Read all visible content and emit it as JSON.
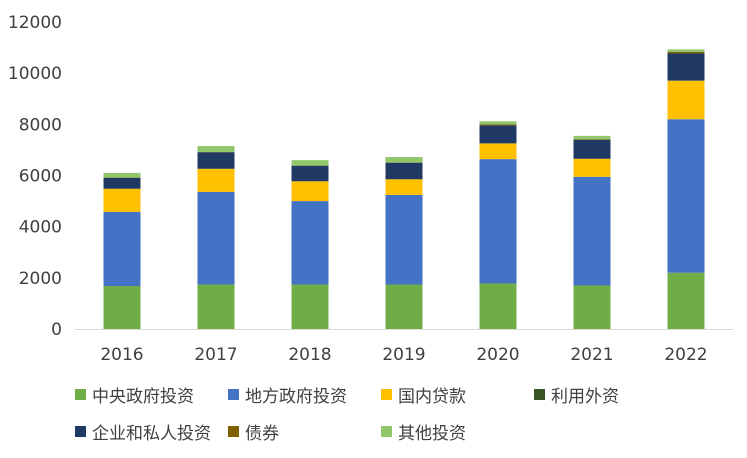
{
  "chart_data": {
    "type": "bar",
    "stacked": true,
    "categories": [
      "2016",
      "2017",
      "2018",
      "2019",
      "2020",
      "2021",
      "2022"
    ],
    "ylim": [
      0,
      12000
    ],
    "yticks": [
      "0",
      "2000",
      "4000",
      "6000",
      "8000",
      "10000",
      "12000"
    ],
    "grid": false,
    "legend_position": "bottom",
    "series": [
      {
        "name": "中央政府投资",
        "color": "#70ad47",
        "values": [
          1680,
          1740,
          1740,
          1740,
          1780,
          1700,
          2200
        ]
      },
      {
        "name": "地方政府投资",
        "color": "#4472c4",
        "values": [
          2900,
          3620,
          3260,
          3500,
          4860,
          4250,
          6000
        ]
      },
      {
        "name": "国内贷款",
        "color": "#ffc000",
        "values": [
          900,
          900,
          770,
          610,
          610,
          700,
          1500
        ]
      },
      {
        "name": "利用外资",
        "color": "#375623",
        "values": [
          10,
          10,
          10,
          10,
          10,
          10,
          20
        ]
      },
      {
        "name": "企业和私人投资",
        "color": "#203864",
        "values": [
          420,
          640,
          600,
          640,
          700,
          730,
          1050
        ]
      },
      {
        "name": "债券",
        "color": "#806000",
        "values": [
          10,
          10,
          10,
          10,
          40,
          30,
          60
        ]
      },
      {
        "name": "其他投资",
        "color": "#8fc76a",
        "values": [
          180,
          230,
          210,
          210,
          120,
          130,
          100
        ]
      }
    ]
  }
}
